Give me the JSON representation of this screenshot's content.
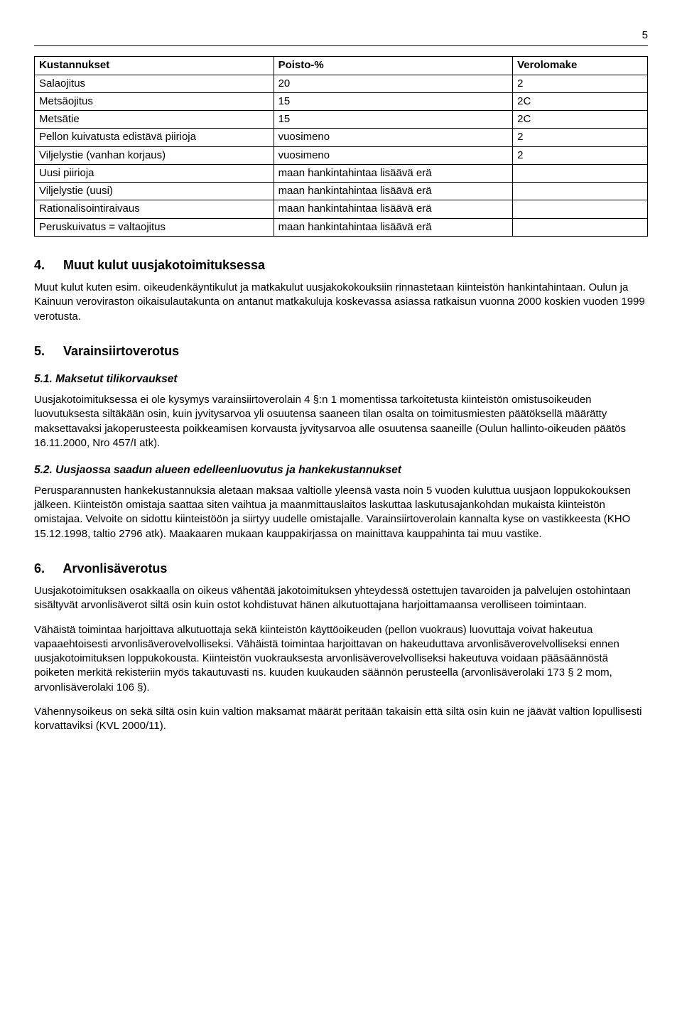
{
  "page_number": "5",
  "table": {
    "headers": [
      "Kustannukset",
      "Poisto-%",
      "Verolomake"
    ],
    "rows": [
      [
        "Salaojitus",
        "20",
        "2"
      ],
      [
        "Metsäojitus",
        "15",
        "2C"
      ],
      [
        "Metsätie",
        "15",
        "2C"
      ],
      [
        "Pellon kuivatusta edistävä piirioja",
        "vuosimeno",
        "2"
      ],
      [
        "Viljelystie (vanhan korjaus)",
        "vuosimeno",
        "2"
      ],
      [
        "Uusi piirioja",
        "maan hankintahintaa lisäävä erä",
        ""
      ],
      [
        "Viljelystie (uusi)",
        "maan hankintahintaa lisäävä erä",
        ""
      ],
      [
        "Rationalisointiraivaus",
        "maan hankintahintaa lisäävä erä",
        ""
      ],
      [
        "Peruskuivatus = valtaojitus",
        "maan hankintahintaa lisäävä erä",
        ""
      ]
    ]
  },
  "sec4": {
    "num": "4.",
    "title": "Muut kulut uusjakotoimituksessa",
    "p1": "Muut kulut kuten esim. oikeudenkäyntikulut ja matkakulut uusjakokokouksiin rinnastetaan kiinteistön hankintahintaan. Oulun ja Kainuun veroviraston oikaisulautakunta on antanut matkakuluja koskevassa asiassa ratkaisun vuonna 2000 koskien vuoden 1999 verotusta."
  },
  "sec5": {
    "num": "5.",
    "title": "Varainsiirtoverotus",
    "sub51_title": "5.1. Maksetut tilikorvaukset",
    "sub51_p": "Uusjakotoimituksessa ei ole kysymys varainsiirtoverolain 4 §:n 1 momentissa tarkoitetusta kiinteistön omistusoikeuden luovutuksesta siltäkään osin, kuin jyvitysarvoa yli osuutensa saaneen tilan osalta on toimitusmiesten päätöksellä määrätty maksettavaksi jakoperusteesta poikkeamisen korvausta jyvitysarvoa alle osuutensa saaneille (Oulun hallinto-oikeuden päätös 16.11.2000, Nro 457/I atk).",
    "sub52_title": "5.2. Uusjaossa saadun alueen edelleenluovutus ja hankekustannukset",
    "sub52_p": "Perusparannusten hankekustannuksia aletaan maksaa valtiolle yleensä vasta noin 5 vuoden kuluttua uusjaon loppukokouksen jälkeen. Kiinteistön omistaja saattaa siten vaihtua ja maanmittauslaitos laskuttaa laskutusajankohdan mukaista kiinteistön omistajaa. Velvoite on sidottu kiinteistöön ja siirtyy uudelle omistajalle. Varainsiirtoverolain kannalta kyse on vastikkeesta (KHO 15.12.1998, taltio 2796 atk). Maakaaren mukaan kauppakirjassa on mainittava kauppahinta tai muu vastike."
  },
  "sec6": {
    "num": "6.",
    "title": "Arvonlisäverotus",
    "p1": "Uusjakotoimituksen osakkaalla on oikeus vähentää jakotoimituksen yhteydessä ostettujen tavaroiden ja palvelujen ostohintaan sisältyvät arvonlisäverot siltä osin kuin ostot kohdistuvat hänen alkutuottajana harjoittamaansa verolliseen toimintaan.",
    "p2": "Vähäistä toimintaa harjoittava alkutuottaja sekä kiinteistön käyttöoikeuden (pellon vuokraus) luovuttaja voivat hakeutua vapaaehtoisesti arvonlisäverovelvolliseksi. Vähäistä toimintaa harjoittavan on hakeuduttava arvonlisäverovelvolliseksi ennen uusjakotoimituksen loppukokousta. Kiinteistön vuokrauksesta arvonlisäverovelvolliseksi hakeutuva voidaan pääsäännöstä poiketen merkitä rekisteriin myös takautuvasti ns. kuuden kuukauden säännön perusteella (arvonlisäverolaki 173 § 2 mom, arvonlisäverolaki 106 §).",
    "p3": "Vähennysoikeus on sekä siltä osin kuin valtion maksamat määrät peritään takaisin että siltä osin kuin ne jäävät valtion lopullisesti korvattaviksi (KVL 2000/11)."
  }
}
